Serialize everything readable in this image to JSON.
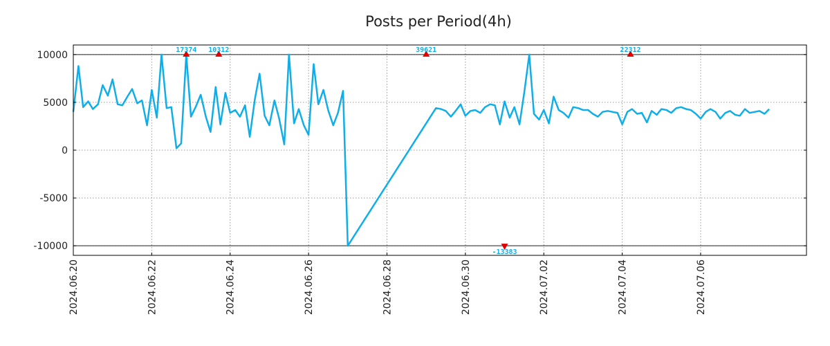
{
  "chart_data": {
    "type": "line",
    "title": "Posts per Period(4h)",
    "xlabel": "",
    "ylabel": "",
    "grid": true,
    "legend": "none",
    "ylim": [
      -11000,
      11000
    ],
    "yticks": [
      10000,
      5000,
      0,
      -5000,
      -10000
    ],
    "ytick_labels": [
      "10000",
      "5000",
      "0",
      "-5000",
      "-10000"
    ],
    "clip_lines": [
      10000,
      -10000
    ],
    "x_range_days": [
      0,
      18.7
    ],
    "xticks_days": [
      0,
      2,
      4,
      6,
      8,
      10,
      12,
      14,
      16
    ],
    "xtick_labels": [
      "2024.06.20",
      "2024.06.22",
      "2024.06.24",
      "2024.06.26",
      "2024.06.28",
      "2024.06.30",
      "2024.07.02",
      "2024.07.04",
      "2024.07.06"
    ],
    "series": [
      {
        "name": "posts",
        "color": "#10aee8",
        "x": [
          0.0,
          0.13,
          0.25,
          0.38,
          0.5,
          0.63,
          0.75,
          0.88,
          1.0,
          1.13,
          1.25,
          1.38,
          1.5,
          1.63,
          1.75,
          1.88,
          2.0,
          2.13,
          2.25,
          2.38,
          2.5,
          2.63,
          2.75,
          2.88,
          3.0,
          3.13,
          3.25,
          3.38,
          3.5,
          3.63,
          3.75,
          3.88,
          4.0,
          4.13,
          4.25,
          4.38,
          4.5,
          4.63,
          4.75,
          4.88,
          5.0,
          5.13,
          5.25,
          5.38,
          5.5,
          5.63,
          5.75,
          5.88,
          6.0,
          6.13,
          6.25,
          6.38,
          6.5,
          6.63,
          6.75,
          6.88,
          7.0,
          9.25,
          9.38,
          9.5,
          9.63,
          9.75,
          9.88,
          10.0,
          10.13,
          10.25,
          10.38,
          10.5,
          10.63,
          10.75,
          10.88,
          11.0,
          11.13,
          11.25,
          11.38,
          11.5,
          11.63,
          11.75,
          11.88,
          12.0,
          12.13,
          12.25,
          12.38,
          12.5,
          12.63,
          12.75,
          12.88,
          13.0,
          13.13,
          13.25,
          13.38,
          13.5,
          13.63,
          13.75,
          13.88,
          14.0,
          14.13,
          14.25,
          14.38,
          14.5,
          14.63,
          14.75,
          14.88,
          15.0,
          15.13,
          15.25,
          15.38,
          15.5,
          15.63,
          15.75,
          15.88,
          16.0,
          16.13,
          16.25,
          16.38,
          16.5,
          16.63,
          16.75,
          16.88,
          17.0,
          17.13,
          17.25,
          17.38,
          17.5,
          17.63,
          17.75
        ],
        "y": [
          4000,
          8800,
          4500,
          5100,
          4300,
          4800,
          6800,
          5700,
          7400,
          4800,
          4700,
          5600,
          6400,
          4900,
          5200,
          2600,
          6300,
          3400,
          10000,
          4400,
          4500,
          200,
          700,
          10000,
          3500,
          4600,
          5800,
          3500,
          1900,
          6600,
          2700,
          6000,
          3900,
          4200,
          3500,
          4700,
          1400,
          5300,
          8000,
          3600,
          2600,
          5200,
          3300,
          600,
          10000,
          2800,
          4300,
          2600,
          1600,
          9000,
          4800,
          6300,
          4200,
          2600,
          3900,
          6200,
          -10000,
          4400,
          4300,
          4100,
          3500,
          4100,
          4800,
          3600,
          4100,
          4200,
          3900,
          4500,
          4800,
          4700,
          2700,
          5100,
          3400,
          4500,
          2700,
          6000,
          10000,
          3800,
          3200,
          4200,
          2800,
          5600,
          4200,
          3900,
          3400,
          4500,
          4400,
          4200,
          4200,
          3800,
          3500,
          4000,
          4100,
          4000,
          3900,
          2700,
          4000,
          4300,
          3800,
          3900,
          2900,
          4100,
          3700,
          4300,
          4200,
          3900,
          4400,
          4500,
          4300,
          4200,
          3800,
          3300,
          4000,
          4300,
          4000,
          3300,
          3900,
          4100,
          3700,
          3600,
          4300,
          3900,
          4000,
          4100,
          3800,
          4300
        ]
      }
    ],
    "annotations": [
      {
        "x": 2.88,
        "y": 10000,
        "label": "17374",
        "direction": "up"
      },
      {
        "x": 3.71,
        "y": 10000,
        "label": "10312",
        "direction": "up"
      },
      {
        "x": 9.0,
        "y": 10000,
        "label": "39621",
        "direction": "up"
      },
      {
        "x": 11.0,
        "y": -10000,
        "label": "-13383",
        "direction": "down"
      },
      {
        "x": 14.21,
        "y": 10000,
        "label": "22312",
        "direction": "up"
      }
    ],
    "annotation_text_color": "#10aee8",
    "marker_color": "#e00000"
  }
}
